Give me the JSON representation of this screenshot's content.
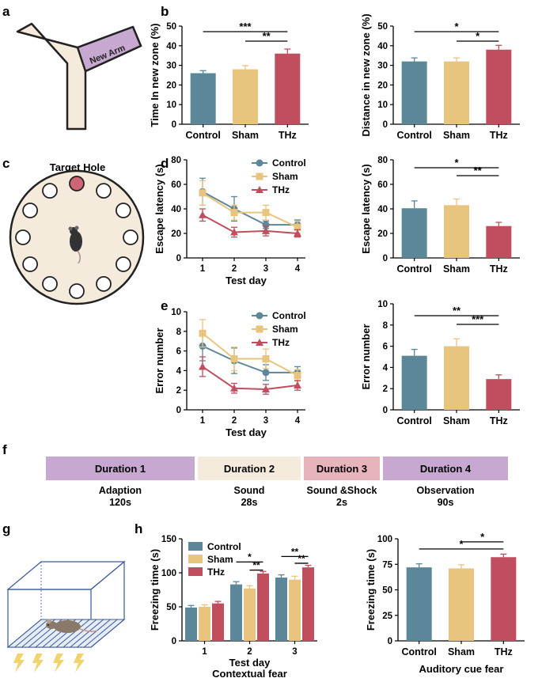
{
  "colors": {
    "control": "#5b8799",
    "sham": "#e8c47f",
    "thz": "#c04e5f",
    "maze": "#f5ebdc",
    "newarm": "#c7a8d0",
    "hole_target": "#cc6677",
    "dur1": "#c7a8d0",
    "dur2": "#f5ebdc",
    "dur3": "#e8b4bc",
    "dur4": "#c7a8d0",
    "cage": "#3a5a9a",
    "lightning": "#f0d36a"
  },
  "panels": {
    "a": "a",
    "b": "b",
    "c": "c",
    "d": "d",
    "e": "e",
    "f": "f",
    "g": "g",
    "h": "h"
  },
  "maze": {
    "new_arm": "New Arm"
  },
  "water_maze": {
    "target_hole": "Target Hole"
  },
  "timeline": {
    "durations": [
      {
        "label": "Duration 1",
        "phase": "Adaption",
        "time": "120s"
      },
      {
        "label": "Duration 2",
        "phase": "Sound",
        "time": "28s"
      },
      {
        "label": "Duration 3",
        "phase": "Sound &Shock",
        "time": "2s"
      },
      {
        "label": "Duration 4",
        "phase": "Observation",
        "time": "90s"
      }
    ]
  },
  "chart_data": [
    {
      "id": "b1",
      "type": "bar",
      "ylabel": "Time In new zone (%)",
      "ylim": [
        0,
        50
      ],
      "yticks": [
        "0",
        "10",
        "20",
        "30",
        "40",
        "50"
      ],
      "categories": [
        "Control",
        "Sham",
        "THz"
      ],
      "values": [
        26,
        28,
        36
      ],
      "errors": [
        1.3,
        1.8,
        2.3
      ],
      "sig": [
        {
          "from": 0,
          "to": 2,
          "text": "***"
        },
        {
          "from": 1,
          "to": 2,
          "text": "**"
        }
      ]
    },
    {
      "id": "b2",
      "type": "bar",
      "ylabel": "Distance in new zone (%)",
      "ylim": [
        0,
        50
      ],
      "yticks": [
        "0",
        "10",
        "20",
        "30",
        "40",
        "50"
      ],
      "categories": [
        "Control",
        "Sham",
        "THz"
      ],
      "values": [
        32,
        32,
        38
      ],
      "errors": [
        1.8,
        1.8,
        2.2
      ],
      "sig": [
        {
          "from": 0,
          "to": 2,
          "text": "*"
        },
        {
          "from": 1,
          "to": 2,
          "text": "*"
        }
      ]
    },
    {
      "id": "d1",
      "type": "line",
      "ylabel": "Escape latency (s)",
      "xlabel": "Test day",
      "x": [
        "1",
        "2",
        "3",
        "4"
      ],
      "ylim": [
        0,
        80
      ],
      "yticks": [
        "0",
        "20",
        "40",
        "60",
        "80"
      ],
      "series": [
        {
          "name": "Control",
          "values": [
            54,
            40,
            27,
            27
          ],
          "errors": [
            11,
            10,
            3,
            4
          ]
        },
        {
          "name": "Sham",
          "values": [
            53,
            37,
            37,
            25
          ],
          "errors": [
            10,
            6,
            6,
            5
          ]
        },
        {
          "name": "THz",
          "values": [
            35,
            21,
            22,
            20
          ],
          "errors": [
            5,
            4,
            4,
            3
          ]
        }
      ]
    },
    {
      "id": "d2",
      "type": "bar",
      "ylabel": "Escape latency (s)",
      "ylim": [
        0,
        80
      ],
      "yticks": [
        "0",
        "20",
        "40",
        "60",
        "80"
      ],
      "categories": [
        "Control",
        "Sham",
        "THz"
      ],
      "values": [
        40.5,
        43,
        26
      ],
      "errors": [
        6,
        5,
        3
      ],
      "sig": [
        {
          "from": 0,
          "to": 2,
          "text": "*"
        },
        {
          "from": 1,
          "to": 2,
          "text": "**"
        }
      ]
    },
    {
      "id": "e1",
      "type": "line",
      "ylabel": "Error number",
      "xlabel": "Test day",
      "x": [
        "1",
        "2",
        "3",
        "4"
      ],
      "ylim": [
        0,
        10
      ],
      "yticks": [
        "0",
        "2",
        "4",
        "6",
        "8",
        "10"
      ],
      "series": [
        {
          "name": "Control",
          "values": [
            6.5,
            5,
            3.8,
            3.8
          ],
          "errors": [
            1.5,
            1.3,
            0.8,
            0.6
          ]
        },
        {
          "name": "Sham",
          "values": [
            7.8,
            5.2,
            5.2,
            3.5
          ],
          "errors": [
            1.4,
            1.2,
            1,
            0.6
          ]
        },
        {
          "name": "THz",
          "values": [
            4.4,
            2.2,
            2.1,
            2.5
          ],
          "errors": [
            1,
            0.5,
            0.5,
            0.5
          ]
        }
      ]
    },
    {
      "id": "e2",
      "type": "bar",
      "ylabel": "Error number",
      "ylim": [
        0,
        10
      ],
      "yticks": [
        "0",
        "2",
        "4",
        "6",
        "8",
        "10"
      ],
      "categories": [
        "Control",
        "Sham",
        "THz"
      ],
      "values": [
        5.1,
        6,
        2.9
      ],
      "errors": [
        0.6,
        0.7,
        0.4
      ],
      "sig": [
        {
          "from": 0,
          "to": 2,
          "text": "**"
        },
        {
          "from": 1,
          "to": 2,
          "text": "***"
        }
      ]
    },
    {
      "id": "h1",
      "type": "bar",
      "grouped": true,
      "ylabel": "Freezing time (s)",
      "xlabel": "Test day",
      "caption": "Contextual fear",
      "ylim": [
        0,
        150
      ],
      "yticks": [
        "0",
        "50",
        "100",
        "150"
      ],
      "categories": [
        "1",
        "2",
        "3"
      ],
      "series": [
        {
          "name": "Control",
          "values": [
            49,
            83,
            93
          ],
          "errors": [
            3,
            4,
            4
          ]
        },
        {
          "name": "Sham",
          "values": [
            50,
            77,
            90
          ],
          "errors": [
            3,
            4,
            5
          ]
        },
        {
          "name": "THz",
          "values": [
            55,
            99,
            108
          ],
          "errors": [
            3,
            3,
            3
          ]
        }
      ],
      "sig": [
        {
          "group": 1,
          "from": 0,
          "to": 2,
          "text": "*"
        },
        {
          "group": 1,
          "from": 1,
          "to": 2,
          "text": "**"
        },
        {
          "group": 2,
          "from": 0,
          "to": 2,
          "text": "**"
        },
        {
          "group": 2,
          "from": 1,
          "to": 2,
          "text": "**"
        }
      ]
    },
    {
      "id": "h2",
      "type": "bar",
      "ylabel": "Freezing time (s)",
      "caption": "Auditory cue fear",
      "ylim": [
        0,
        100
      ],
      "yticks": [
        "0",
        "25",
        "50",
        "75",
        "100"
      ],
      "categories": [
        "Control",
        "Sham",
        "THz"
      ],
      "values": [
        72,
        71,
        82
      ],
      "errors": [
        3.5,
        3.5,
        3
      ],
      "sig": [
        {
          "from": 0,
          "to": 2,
          "text": "*"
        },
        {
          "from": 1,
          "to": 2,
          "text": "*"
        }
      ]
    }
  ]
}
